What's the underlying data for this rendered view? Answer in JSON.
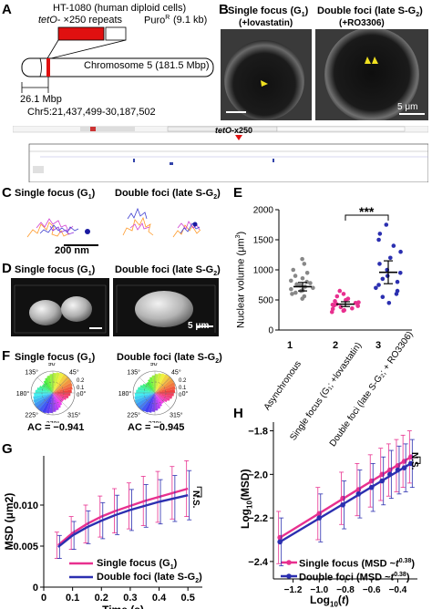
{
  "panels": {
    "A": {
      "letter": "A",
      "cell_line": "HT-1080 (human diploid cells)",
      "construct_prefix": "tetO",
      "construct_repeats": "- ×250 repeats",
      "resistance": "Puro",
      "resistance_sup": "R",
      "size": "(9.1 kb)",
      "chromosome": "Chromosome 5 (181.5 Mbp)",
      "position_mbp": "26.1 Mbp",
      "locus": "Chr5:21,437,499-30,187,502",
      "insert_label_prefix": "tetO",
      "insert_label_suffix": "-x250"
    },
    "B": {
      "letter": "B",
      "left_title": "Single focus (G",
      "left_sub": "1",
      "left_close": ")",
      "left_drug": "(+lovastatin)",
      "right_title": "Double foci (late S-G",
      "right_sub": "2",
      "right_close": ")",
      "right_drug": "(+RO3306)",
      "scale": "5 μm"
    },
    "C": {
      "letter": "C",
      "left_title": "Single focus (G",
      "left_sub": "1",
      "right_title": "Double foci (late S-G",
      "right_sub": "2",
      "scale": "200 nm"
    },
    "D": {
      "letter": "D",
      "left_title": "Single focus (G",
      "left_sub": "1",
      "right_title": "Double foci (late S-G",
      "right_sub": "2",
      "scale": "5 μm"
    },
    "E": {
      "letter": "E",
      "significance": "***",
      "ylabel_prefix": "Nuclear volume (μm",
      "ylabel_sup": "3",
      "group_numbers": [
        "1",
        "2",
        "3"
      ],
      "categories": [
        "Asynchronous",
        "Single focus (G₁; +lovastatin)",
        "Double foci (late S-G₂; + RO3306)"
      ]
    },
    "F": {
      "letter": "F",
      "left_title": "Single focus (G",
      "left_sub": "1",
      "right_title": "Double foci (late S-G",
      "right_sub": "2",
      "angles": [
        "90°",
        "45°",
        "0°",
        "315°",
        "270°",
        "225°",
        "180°",
        "135°"
      ],
      "radial_ticks": [
        "0.2",
        "0.1",
        "0"
      ],
      "left_ac": "AC = −0.941",
      "right_ac": "AC = −0.945"
    },
    "G": {
      "letter": "G",
      "ns": "N.S.",
      "legend_single": "Single focus (G",
      "legend_single_sub": "1",
      "legend_double": "Double foci (late S-G",
      "legend_double_sub": "2"
    },
    "H": {
      "letter": "H",
      "ns": "N.S.",
      "legend_single": "Single focus (MSD ~",
      "legend_double": "Double foci (MSD ~",
      "legend_t": "t",
      "legend_exp": "0.38",
      "ylabel_prefix": "Log",
      "ylabel_sub": "10",
      "ylabel_suffix": "(MSD)",
      "xlabel_prefix": "Log",
      "xlabel_sub": "10",
      "xlabel_open": "(",
      "xlabel_t": "t",
      "xlabel_close": ")"
    }
  },
  "chart_data": [
    {
      "panel": "E",
      "type": "scatter",
      "categories": [
        "1",
        "2",
        "3"
      ],
      "ylabel": "Nuclear volume (μm3)",
      "ylim": [
        0,
        2000
      ],
      "yticks": [
        0,
        500,
        1000,
        1500,
        2000
      ],
      "colors": [
        "#888888",
        "#e8308f",
        "#2b2fb0"
      ],
      "series": [
        {
          "values": [
            520,
            560,
            600,
            620,
            650,
            660,
            680,
            700,
            720,
            740,
            760,
            780,
            800,
            820,
            860,
            900,
            950,
            1000,
            1100,
            1180
          ],
          "mean": 720,
          "sem": 70
        },
        {
          "values": [
            300,
            320,
            330,
            350,
            360,
            380,
            400,
            410,
            420,
            430,
            450,
            460,
            480,
            500,
            520,
            560,
            600,
            650
          ],
          "mean": 430,
          "sem": 40
        },
        {
          "values": [
            450,
            550,
            600,
            650,
            700,
            750,
            800,
            850,
            900,
            950,
            1000,
            1100,
            1200,
            1300,
            1400,
            1500,
            1600,
            1750
          ],
          "mean": 960,
          "sem": 190
        }
      ]
    },
    {
      "panel": "G",
      "type": "line",
      "xlabel": "Time (s)",
      "ylabel": "MSD (μm2)",
      "xlim": [
        0,
        0.55
      ],
      "ylim": [
        0,
        0.016
      ],
      "xticks": [
        0,
        0.1,
        0.2,
        0.3,
        0.4,
        0.5
      ],
      "yticks": [
        0,
        0.005,
        0.01
      ],
      "ytick_labels": [
        "0",
        "0.005",
        "0.010"
      ],
      "x": [
        0.05,
        0.1,
        0.15,
        0.2,
        0.25,
        0.3,
        0.35,
        0.4,
        0.45,
        0.5
      ],
      "series": [
        {
          "name": "Single focus (G1)",
          "color": "#e8308f",
          "values": [
            0.0051,
            0.0066,
            0.0077,
            0.0086,
            0.0093,
            0.0099,
            0.0105,
            0.011,
            0.0115,
            0.012
          ],
          "err": [
            0.0016,
            0.002,
            0.0023,
            0.0025,
            0.0027,
            0.0028,
            0.003,
            0.0031,
            0.0032,
            0.0034
          ]
        },
        {
          "name": "Double foci (late S-G2)",
          "color": "#2b2fb0",
          "values": [
            0.0049,
            0.0063,
            0.0073,
            0.0081,
            0.0088,
            0.0094,
            0.0099,
            0.0104,
            0.0108,
            0.0112
          ],
          "err": [
            0.0014,
            0.0017,
            0.002,
            0.0022,
            0.0024,
            0.0025,
            0.0026,
            0.0027,
            0.0028,
            0.003
          ]
        }
      ]
    },
    {
      "panel": "H",
      "type": "line",
      "xlim": [
        -1.35,
        -0.25
      ],
      "ylim": [
        -2.48,
        -1.76
      ],
      "xticks": [
        -1.2,
        -1.0,
        -0.8,
        -0.6,
        -0.4
      ],
      "xtick_labels": [
        "−1.2",
        "−1.0",
        "−0.8",
        "−0.6",
        "−0.4"
      ],
      "yticks": [
        -2.4,
        -2.2,
        -2.0,
        -1.8
      ],
      "ytick_labels": [
        "−2.4",
        "−2.2",
        "−2.0",
        "−1.8"
      ],
      "x": [
        -1.3,
        -1.0,
        -0.82,
        -0.7,
        -0.6,
        -0.52,
        -0.46,
        -0.4,
        -0.35,
        -0.3
      ],
      "series": [
        {
          "name": "Single focus",
          "color": "#e8308f",
          "values": [
            -2.29,
            -2.18,
            -2.11,
            -2.07,
            -2.03,
            -2.0,
            -1.98,
            -1.96,
            -1.94,
            -1.92
          ],
          "err": [
            0.12,
            0.12,
            0.12,
            0.12,
            0.12,
            0.12,
            0.12,
            0.12,
            0.12,
            0.12
          ]
        },
        {
          "name": "Double foci",
          "color": "#2b2fb0",
          "values": [
            -2.31,
            -2.2,
            -2.14,
            -2.09,
            -2.06,
            -2.03,
            -2.0,
            -1.98,
            -1.97,
            -1.95
          ],
          "err": [
            0.11,
            0.11,
            0.11,
            0.11,
            0.11,
            0.11,
            0.11,
            0.11,
            0.11,
            0.11
          ]
        }
      ]
    }
  ],
  "colors": {
    "magenta": "#e8308f",
    "navy": "#2b2fb0",
    "red": "#e01010",
    "grey": "#888888"
  }
}
